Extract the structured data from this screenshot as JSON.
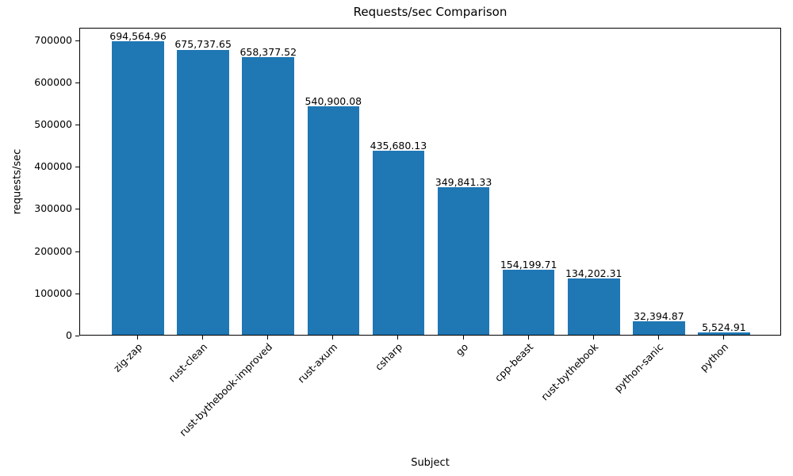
{
  "chart_data": {
    "type": "bar",
    "title": "Requests/sec Comparison",
    "xlabel": "Subject",
    "ylabel": "requests/sec",
    "categories": [
      "zig-zap",
      "rust-clean",
      "rust-bythebook-improved",
      "rust-axum",
      "csharp",
      "go",
      "cpp-beast",
      "rust-bythebook",
      "python-sanic",
      "python"
    ],
    "values": [
      694564.96,
      675737.65,
      658377.52,
      540900.08,
      435680.13,
      349841.33,
      154199.71,
      134202.31,
      32394.87,
      5524.91
    ],
    "value_labels": [
      "694,564.96",
      "675,737.65",
      "658,377.52",
      "540,900.08",
      "435,680.13",
      "349,841.33",
      "154,199.71",
      "134,202.31",
      "32,394.87",
      "5,524.91"
    ],
    "bar_color": "#1f77b4",
    "axis_color": "#000000",
    "ylim": [
      0,
      729293
    ],
    "yticks": [
      0,
      100000,
      200000,
      300000,
      400000,
      500000,
      600000,
      700000
    ],
    "ytick_labels": [
      "0",
      "100000",
      "200000",
      "300000",
      "400000",
      "500000",
      "600000",
      "700000"
    ],
    "grid": false,
    "legend": "none",
    "bar_width_fraction": 0.8,
    "x_margin_units": 0.89
  }
}
